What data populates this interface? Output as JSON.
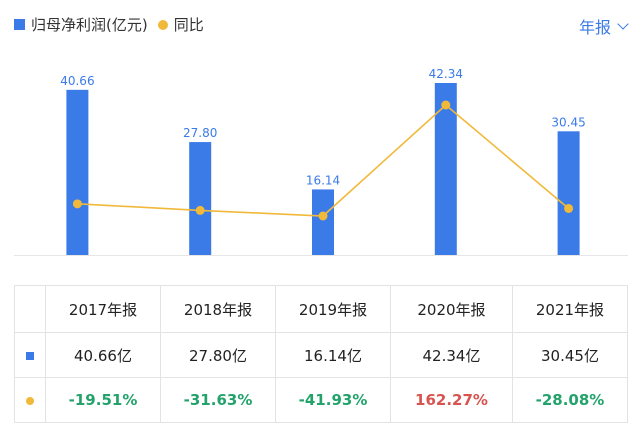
{
  "legend": {
    "series1": "归母净利润(亿元)",
    "series2": "同比"
  },
  "period_selector": "年报",
  "colors": {
    "bar": "#3b7be8",
    "line": "#f0b93a",
    "negative": "#23a36b",
    "positive": "#d9534f"
  },
  "chart_data": {
    "type": "bar",
    "categories": [
      "2017年报",
      "2018年报",
      "2019年报",
      "2020年报",
      "2021年报"
    ],
    "series": [
      {
        "name": "归母净利润(亿元)",
        "type": "bar",
        "values": [
          40.66,
          27.8,
          16.14,
          42.34,
          30.45
        ],
        "labels": [
          "40.66",
          "27.80",
          "16.14",
          "42.34",
          "30.45"
        ]
      },
      {
        "name": "同比",
        "type": "line",
        "values": [
          -19.51,
          -31.63,
          -41.93,
          162.27,
          -28.08
        ]
      }
    ],
    "legend_position": "top-left",
    "grid": false
  },
  "table": {
    "headers": [
      "2017年报",
      "2018年报",
      "2019年报",
      "2020年报",
      "2021年报"
    ],
    "profit_row": [
      "40.66亿",
      "27.80亿",
      "16.14亿",
      "42.34亿",
      "30.45亿"
    ],
    "yoy_row": [
      "-19.51%",
      "-31.63%",
      "-41.93%",
      "162.27%",
      "-28.08%"
    ]
  }
}
